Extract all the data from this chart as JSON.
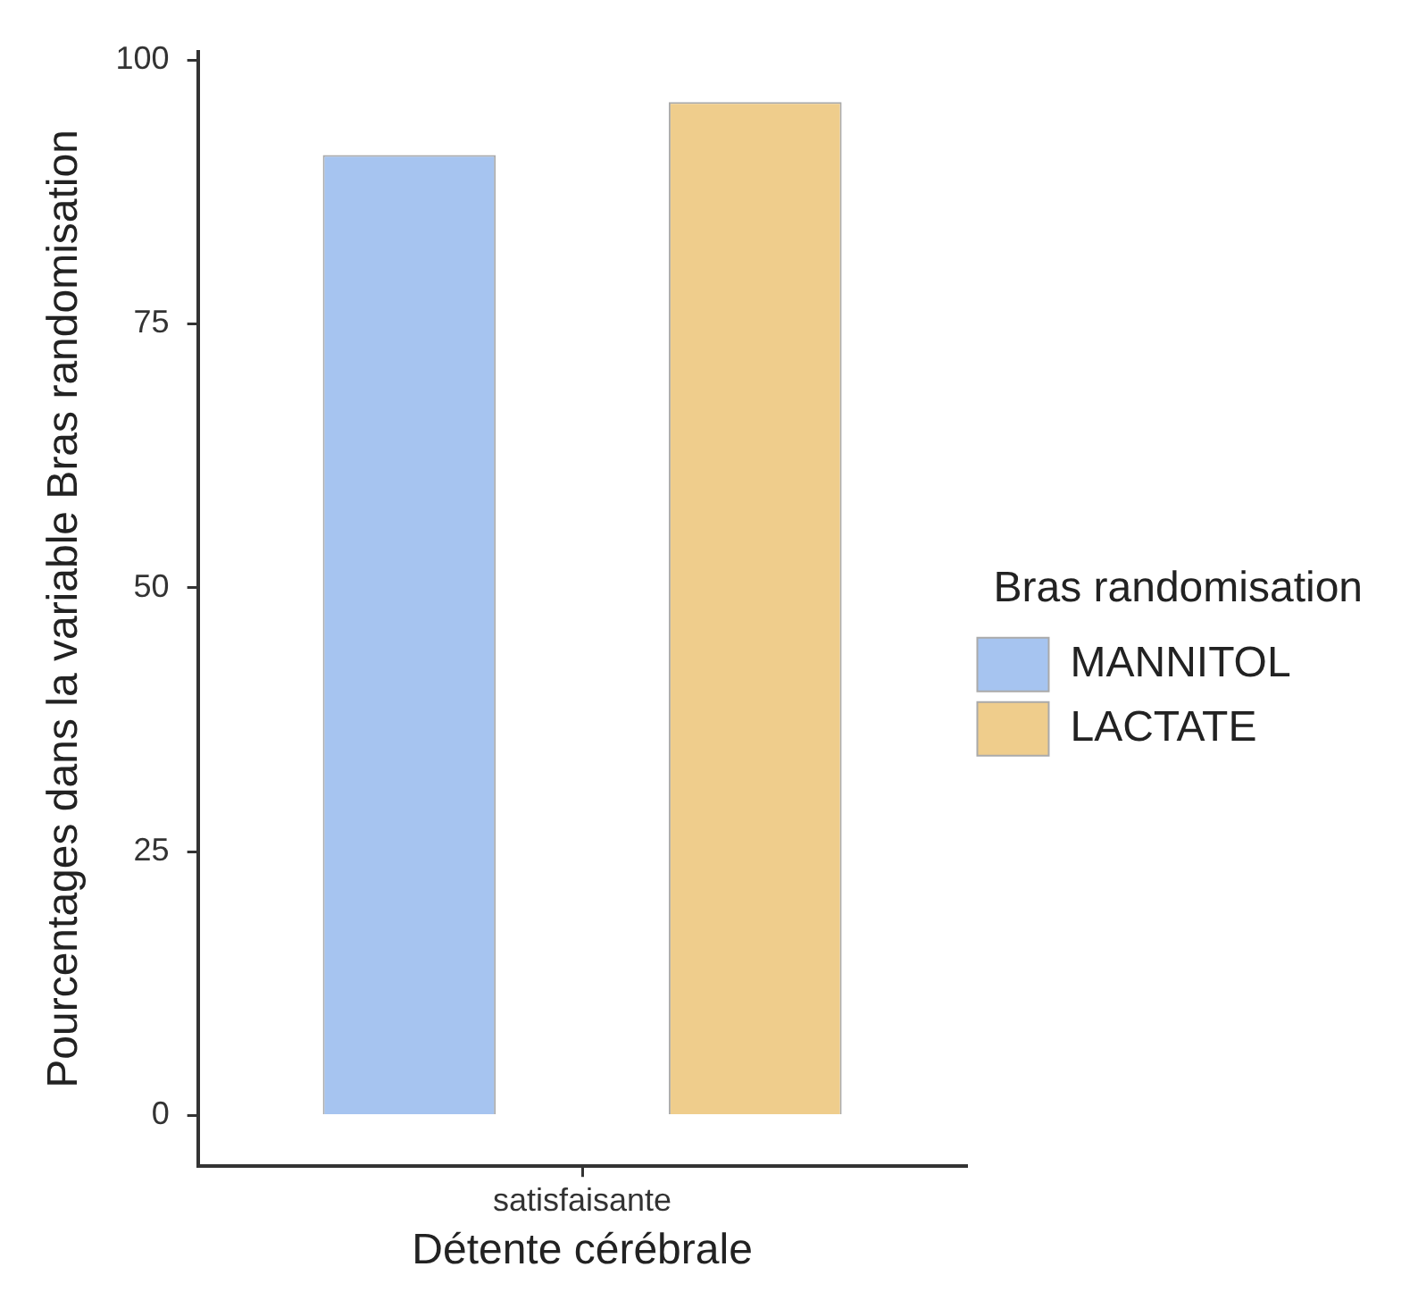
{
  "chart_data": {
    "type": "bar",
    "xlabel": "Détente cérébrale",
    "ylabel": "Pourcentages dans la variable Bras randomisation",
    "legend_title": "Bras randomisation",
    "categories": [
      "satisfaisante"
    ],
    "series": [
      {
        "name": "MANNITOL",
        "color": "#a6c4f0",
        "values": [
          91
        ]
      },
      {
        "name": "LACTATE",
        "color": "#efcd8c",
        "values": [
          96
        ]
      }
    ],
    "ylim": [
      -4.8,
      100.8
    ],
    "yticks": [
      0,
      25,
      50,
      75,
      100
    ],
    "grid": false,
    "legend": "right"
  }
}
